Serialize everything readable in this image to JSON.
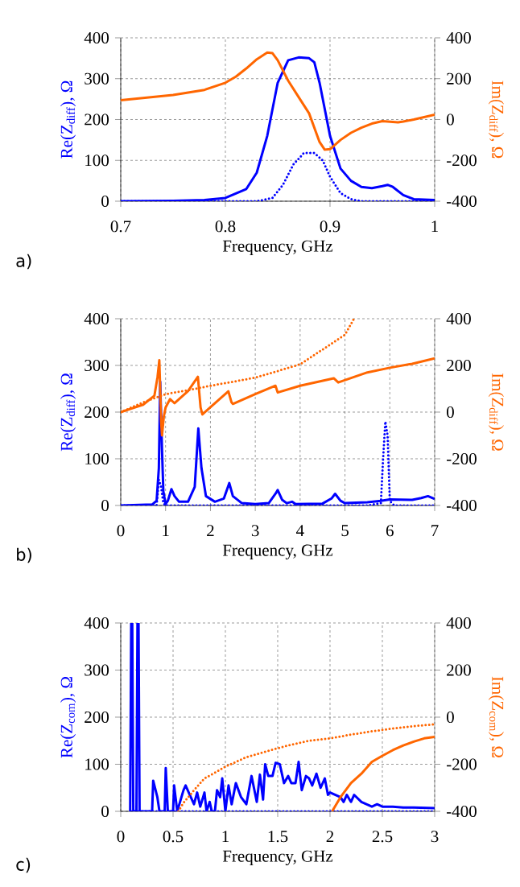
{
  "chart_data": [
    {
      "type": "line",
      "xlabel": "Frequency, GHz",
      "ylabel": "Re(Z$_{diff}$), Ω",
      "y2label": "Im(Z$_{diff}$), Ω",
      "annotations": [
        "a)"
      ],
      "grid": true,
      "xlim": [
        0.7,
        1
      ],
      "xticks": [
        0.7,
        0.8,
        0.9,
        1
      ],
      "ylim": [
        0,
        400
      ],
      "yticks": [
        0,
        100,
        200,
        300,
        400
      ],
      "y2lim": [
        -400,
        400
      ],
      "y2ticks": [
        -400,
        -200,
        0,
        200,
        400
      ],
      "series": [
        {
          "color": "#0000ff",
          "line_style": "solid",
          "axis": "y",
          "x": [
            0.7,
            0.75,
            0.78,
            0.8,
            0.82,
            0.83,
            0.84,
            0.85,
            0.86,
            0.87,
            0.88,
            0.885,
            0.89,
            0.9,
            0.91,
            0.92,
            0.93,
            0.94,
            0.95,
            0.955,
            0.96,
            0.97,
            0.98,
            1.0
          ],
          "values": [
            0,
            1,
            3,
            8,
            30,
            70,
            160,
            290,
            345,
            352,
            350,
            340,
            290,
            160,
            80,
            50,
            35,
            32,
            37,
            40,
            35,
            15,
            5,
            3
          ]
        },
        {
          "color": "#0000ff",
          "line_style": "dotted",
          "axis": "y",
          "x": [
            0.7,
            0.83,
            0.845,
            0.855,
            0.865,
            0.875,
            0.885,
            0.893,
            0.9,
            0.91,
            0.92,
            0.93,
            1.0
          ],
          "values": [
            0,
            0,
            8,
            40,
            90,
            118,
            118,
            100,
            60,
            20,
            5,
            0,
            0
          ]
        },
        {
          "color": "#ff6600",
          "line_style": "solid",
          "axis": "y2",
          "x": [
            0.7,
            0.75,
            0.78,
            0.8,
            0.81,
            0.82,
            0.83,
            0.84,
            0.845,
            0.85,
            0.86,
            0.87,
            0.88,
            0.89,
            0.895,
            0.9,
            0.91,
            0.92,
            0.93,
            0.94,
            0.95,
            0.96,
            0.965,
            0.97,
            0.98,
            1.0
          ],
          "values": [
            95,
            120,
            145,
            180,
            210,
            250,
            295,
            328,
            325,
            290,
            190,
            110,
            30,
            -110,
            -148,
            -145,
            -100,
            -65,
            -40,
            -20,
            -8,
            -12,
            -14,
            -10,
            0,
            24
          ]
        }
      ]
    },
    {
      "type": "line",
      "xlabel": "Frequency, GHz",
      "ylabel": "Re(Z$_{diff}$), Ω",
      "y2label": "Im(Z$_{diff}$), Ω",
      "annotations": [
        "b)"
      ],
      "grid": true,
      "xlim": [
        0,
        7
      ],
      "xticks": [
        0,
        1,
        2,
        3,
        4,
        5,
        6,
        7
      ],
      "ylim": [
        0,
        400
      ],
      "yticks": [
        0,
        100,
        200,
        300,
        400
      ],
      "y2lim": [
        -400,
        400
      ],
      "y2ticks": [
        -400,
        -200,
        0,
        200,
        400
      ],
      "series": [
        {
          "color": "#0000ff",
          "line_style": "solid",
          "axis": "y",
          "x": [
            0,
            0.7,
            0.8,
            0.85,
            0.88,
            0.92,
            0.95,
            1.0,
            1.05,
            1.13,
            1.2,
            1.3,
            1.5,
            1.65,
            1.73,
            1.8,
            1.9,
            2.1,
            2.3,
            2.42,
            2.5,
            2.7,
            3.0,
            3.3,
            3.45,
            3.5,
            3.6,
            3.7,
            3.82,
            3.9,
            4.5,
            4.7,
            4.78,
            4.9,
            5.0,
            5.5,
            5.8,
            6.0,
            6.5,
            6.7,
            6.85,
            7.0
          ],
          "values": [
            0,
            2,
            10,
            80,
            265,
            120,
            30,
            3,
            10,
            35,
            20,
            8,
            8,
            40,
            165,
            80,
            20,
            8,
            15,
            48,
            20,
            5,
            3,
            5,
            25,
            33,
            12,
            5,
            8,
            3,
            4,
            15,
            25,
            10,
            5,
            7,
            10,
            13,
            12,
            16,
            20,
            14
          ]
        },
        {
          "color": "#0000ff",
          "line_style": "dotted",
          "axis": "y",
          "x": [
            0,
            0.8,
            0.85,
            0.9,
            0.95,
            1.0,
            5.5,
            5.8,
            5.85,
            5.9,
            5.95,
            6.0,
            6.1,
            7.0
          ],
          "values": [
            0,
            0,
            55,
            40,
            5,
            0,
            0,
            5,
            100,
            180,
            150,
            10,
            0,
            0
          ]
        },
        {
          "color": "#ff6600",
          "line_style": "solid",
          "axis": "y2",
          "x": [
            0,
            0.5,
            0.75,
            0.82,
            0.86,
            0.88,
            0.9,
            0.92,
            0.96,
            1.0,
            1.1,
            1.2,
            1.5,
            1.72,
            1.78,
            1.82,
            2.0,
            2.4,
            2.47,
            2.5,
            3.0,
            3.45,
            3.5,
            4.0,
            4.75,
            4.85,
            5.5,
            6.0,
            6.5,
            7.0
          ],
          "values": [
            0,
            32,
            70,
            150,
            222,
            100,
            -40,
            -100,
            -20,
            20,
            56,
            38,
            90,
            151,
            20,
            -10,
            21,
            89,
            42,
            35,
            77,
            113,
            84,
            113,
            145,
            127,
            170,
            190,
            207,
            230
          ]
        },
        {
          "color": "#ff6600",
          "line_style": "dotted",
          "axis": "y2",
          "x": [
            0,
            0.5,
            1,
            1.5,
            2,
            2.5,
            3,
            3.5,
            4,
            4.5,
            5,
            5.2
          ],
          "values": [
            0,
            42,
            77,
            94,
            113,
            130,
            148,
            176,
            205,
            268,
            332,
            400
          ]
        }
      ]
    },
    {
      "type": "line",
      "xlabel": "Frequency, GHz",
      "ylabel": "Re(Z$_{com}$), Ω",
      "y2label": "Im(Z$_{com}$), Ω",
      "annotations": [
        "c)"
      ],
      "grid": true,
      "xlim": [
        0,
        3
      ],
      "xticks": [
        0,
        0.5,
        1,
        1.5,
        2,
        2.5,
        3
      ],
      "ylim": [
        0,
        400
      ],
      "yticks": [
        0,
        100,
        200,
        300,
        400
      ],
      "y2lim": [
        -400,
        400
      ],
      "y2ticks": [
        -400,
        -200,
        0,
        200,
        400
      ],
      "series": [
        {
          "color": "#0000ff",
          "line_style": "solid",
          "axis": "y",
          "x": [
            0.09,
            0.1,
            0.11,
            0.12,
            0.15,
            0.16,
            0.17,
            0.18,
            0.25,
            0.3,
            0.31,
            0.35,
            0.37,
            0.42,
            0.43,
            0.45,
            0.5,
            0.51,
            0.54,
            0.6,
            0.62,
            0.66,
            0.7,
            0.73,
            0.76,
            0.8,
            0.82,
            0.85,
            0.87,
            0.9,
            0.92,
            0.95,
            0.97,
            1.0,
            1.03,
            1.06,
            1.1,
            1.15,
            1.2,
            1.25,
            1.3,
            1.33,
            1.36,
            1.38,
            1.41,
            1.45,
            1.48,
            1.52,
            1.56,
            1.6,
            1.63,
            1.67,
            1.7,
            1.73,
            1.77,
            1.8,
            1.83,
            1.87,
            1.91,
            1.95,
            1.98,
            2.0,
            2.05,
            2.1,
            2.13,
            2.16,
            2.2,
            2.23,
            2.3,
            2.4,
            2.45,
            2.5,
            2.6,
            2.7,
            2.8,
            3.0
          ],
          "values": [
            0,
            400,
            400,
            0,
            0,
            400,
            400,
            0,
            0,
            0,
            65,
            30,
            0,
            0,
            92,
            0,
            0,
            55,
            0,
            45,
            55,
            35,
            15,
            40,
            10,
            40,
            0,
            20,
            0,
            0,
            45,
            30,
            70,
            0,
            55,
            15,
            60,
            30,
            15,
            75,
            20,
            78,
            25,
            100,
            75,
            75,
            103,
            100,
            60,
            75,
            60,
            60,
            105,
            45,
            75,
            70,
            55,
            80,
            50,
            70,
            35,
            40,
            35,
            30,
            20,
            35,
            20,
            35,
            20,
            10,
            15,
            10,
            10,
            8,
            8,
            7
          ]
        },
        {
          "color": "#0000ff",
          "line_style": "dotted",
          "axis": "y",
          "x": [
            0.1,
            1,
            2,
            3
          ],
          "values": [
            0,
            0,
            0,
            0
          ]
        },
        {
          "color": "#ff6600",
          "line_style": "solid",
          "axis": "y2",
          "x": [
            2.02,
            2.1,
            2.2,
            2.3,
            2.4,
            2.5,
            2.6,
            2.7,
            2.8,
            2.9,
            3.0
          ],
          "values": [
            -400,
            -340,
            -280,
            -240,
            -190,
            -164,
            -140,
            -120,
            -104,
            -90,
            -84
          ]
        },
        {
          "color": "#ff6600",
          "line_style": "dotted",
          "axis": "y2",
          "x": [
            0.55,
            0.6,
            0.7,
            0.8,
            0.9,
            1.0,
            1.2,
            1.4,
            1.6,
            1.8,
            2.0,
            2.2,
            2.4,
            2.6,
            2.8,
            3.0
          ],
          "values": [
            -400,
            -364,
            -310,
            -260,
            -236,
            -210,
            -170,
            -144,
            -120,
            -100,
            -90,
            -74,
            -60,
            -48,
            -38,
            -30
          ]
        }
      ]
    }
  ]
}
